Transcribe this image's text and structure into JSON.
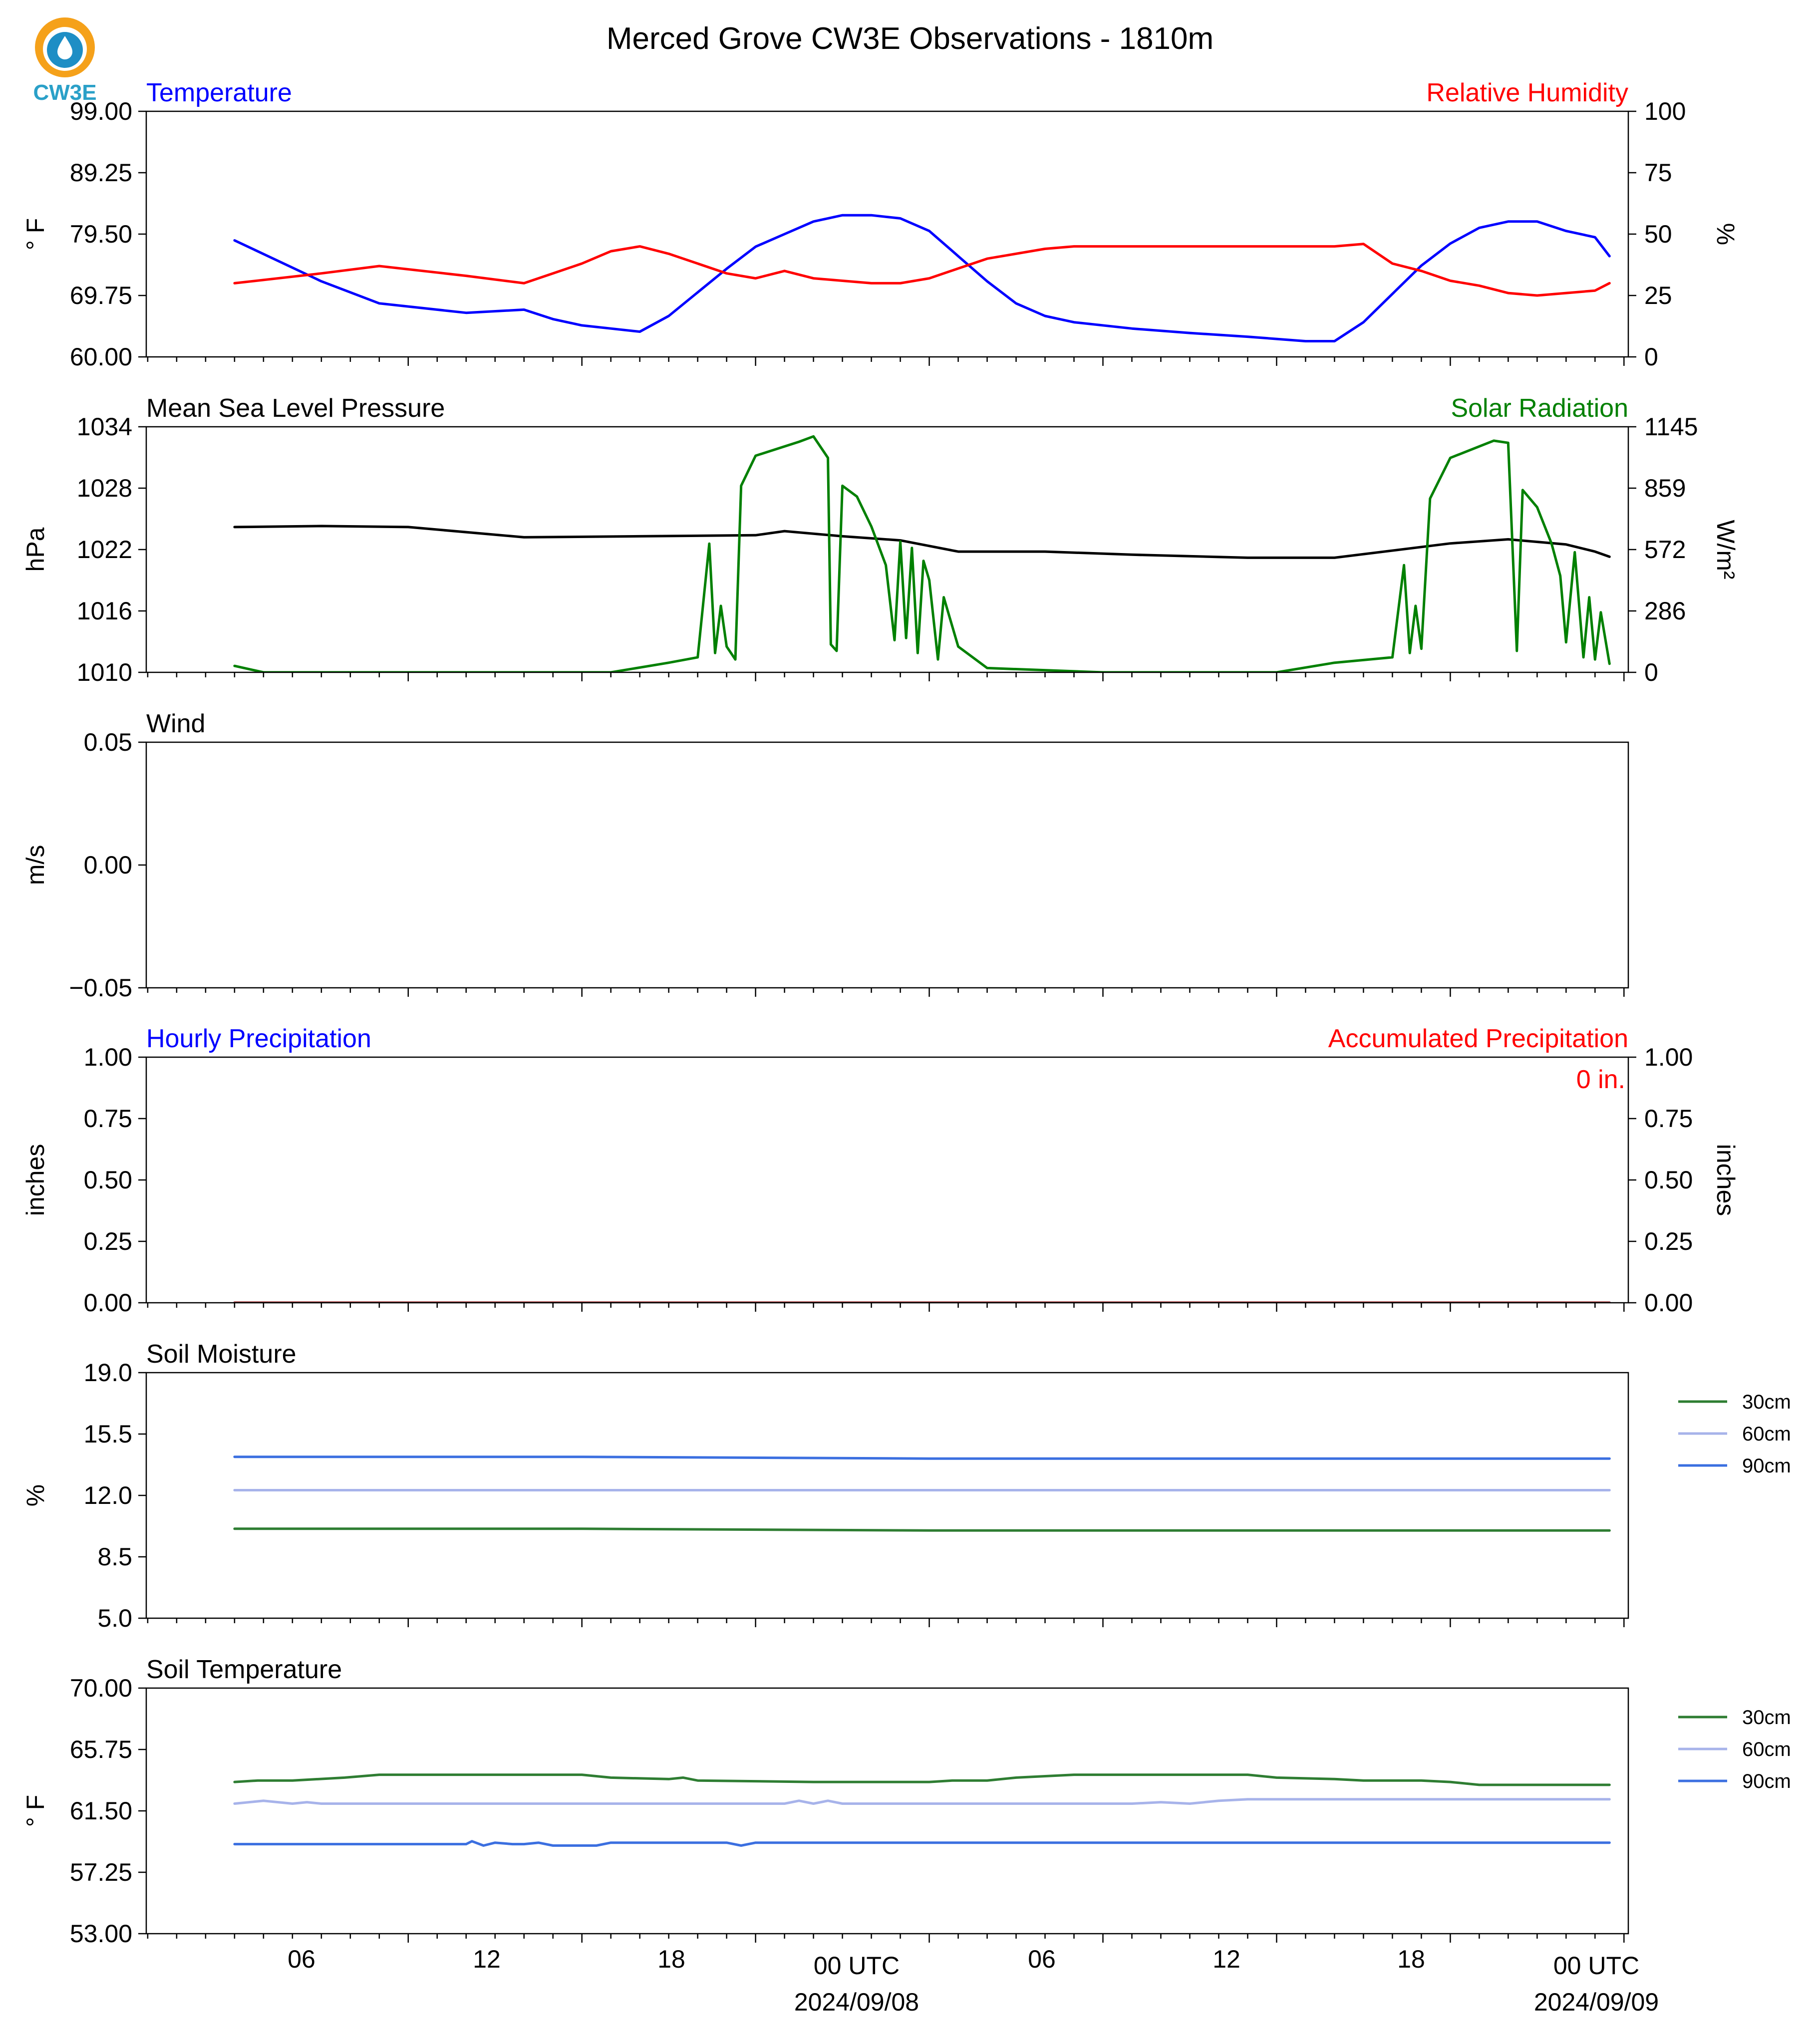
{
  "figure": {
    "title": "Merced Grove CW3E Observations - 1810m",
    "logo_text": "CW3E"
  },
  "x_axis": {
    "tick_labels": [
      "06",
      "12",
      "18",
      "00 UTC",
      "06",
      "12",
      "18",
      "00 UTC"
    ],
    "date_labels": [
      "2024/09/08",
      "2024/09/09"
    ]
  },
  "colors": {
    "temperature": "#0000ff",
    "humidity": "#ff0000",
    "pressure": "#000000",
    "solar": "#008000",
    "soil_30cm": "#2e7d32",
    "soil_60cm": "#a7b3ea",
    "soil_90cm": "#3b6fe0"
  },
  "chart_data": [
    {
      "type": "line",
      "title_left": "Temperature",
      "title_right": "Relative Humidity",
      "ylabel": "° F",
      "ylabel_right": "%",
      "ylim": [
        60,
        99
      ],
      "ylim_right": [
        0,
        100
      ],
      "yticks": [
        "99.00",
        "89.25",
        "79.50",
        "69.75",
        "60.00"
      ],
      "yticks_right": [
        "100",
        "75",
        "50",
        "25",
        "0"
      ],
      "x_hours": [
        0,
        3,
        5,
        8,
        10,
        11,
        12,
        13,
        14,
        15,
        17,
        18,
        19,
        20,
        21,
        22,
        23,
        24,
        25,
        26,
        27,
        28,
        29,
        31,
        33,
        35,
        37,
        38,
        39,
        40,
        41,
        42,
        43,
        44,
        45,
        46,
        47,
        47.5
      ],
      "series": [
        {
          "name": "Temperature",
          "axis": "left",
          "values": [
            78.5,
            72,
            68.5,
            67,
            67.5,
            66,
            65,
            64.5,
            64,
            66.5,
            74,
            77.5,
            79.5,
            81.5,
            82.5,
            82.5,
            82,
            80,
            76,
            72,
            68.5,
            66.5,
            65.5,
            64.5,
            63.8,
            63.2,
            62.5,
            62.5,
            65.5,
            70,
            74.5,
            78,
            80.5,
            81.5,
            81.5,
            80,
            79,
            76
          ]
        },
        {
          "name": "Relative Humidity",
          "axis": "right",
          "values": [
            30,
            34,
            37,
            33,
            30,
            34,
            38,
            43,
            45,
            42,
            34,
            32,
            35,
            32,
            31,
            30,
            30,
            32,
            36,
            40,
            42,
            44,
            45,
            45,
            45,
            45,
            45,
            45,
            46,
            38,
            35,
            31,
            29,
            26,
            25,
            26,
            27,
            30
          ]
        }
      ]
    },
    {
      "type": "line",
      "title_left": "Mean Sea Level Pressure",
      "title_right": "Solar Radiation",
      "ylabel": "hPa",
      "ylabel_right": "W/m²",
      "ylim": [
        1010,
        1034
      ],
      "ylim_right": [
        0,
        1145
      ],
      "yticks": [
        "1034",
        "1028",
        "1022",
        "1016",
        "1010"
      ],
      "yticks_right": [
        "1145",
        "859",
        "572",
        "286",
        "0"
      ],
      "series": [
        {
          "name": "Mean Sea Level Pressure",
          "axis": "left",
          "x_hours": [
            0,
            3,
            6,
            10,
            14,
            18,
            19,
            21,
            23,
            25,
            28,
            31,
            35,
            38,
            42,
            44,
            46,
            47,
            47.5
          ],
          "values": [
            1024.2,
            1024.3,
            1024.2,
            1023.2,
            1023.3,
            1023.4,
            1023.8,
            1023.3,
            1022.9,
            1021.8,
            1021.8,
            1021.5,
            1021.2,
            1021.2,
            1022.6,
            1023,
            1022.5,
            1021.8,
            1021.3
          ]
        },
        {
          "name": "Solar Radiation",
          "axis": "right",
          "x_hours": [
            0,
            1,
            5,
            10,
            13,
            15,
            16,
            16.4,
            16.6,
            16.8,
            17,
            17.3,
            17.5,
            18,
            19.5,
            20,
            20.5,
            20.6,
            20.8,
            21,
            21.5,
            22,
            22.5,
            22.8,
            23,
            23.2,
            23.4,
            23.6,
            23.8,
            24,
            24.3,
            24.5,
            25,
            26,
            30,
            36,
            38,
            40,
            40.4,
            40.6,
            40.8,
            41,
            41.3,
            42,
            43.5,
            44,
            44.3,
            44.5,
            45,
            45.5,
            45.8,
            46,
            46.3,
            46.6,
            46.8,
            47,
            47.2,
            47.5
          ],
          "values": [
            30,
            0,
            0,
            0,
            0,
            45,
            70,
            600,
            90,
            310,
            120,
            60,
            870,
            1010,
            1075,
            1100,
            1000,
            130,
            100,
            870,
            820,
            680,
            500,
            150,
            610,
            160,
            580,
            90,
            520,
            430,
            60,
            350,
            120,
            20,
            0,
            0,
            45,
            70,
            500,
            90,
            310,
            110,
            810,
            1000,
            1080,
            1070,
            100,
            850,
            770,
            600,
            450,
            140,
            560,
            70,
            350,
            60,
            280,
            40
          ]
        }
      ]
    },
    {
      "type": "line",
      "title_left": "Wind",
      "ylabel": "m/s",
      "ylim": [
        -0.055,
        0.055
      ],
      "yticks": [
        "0.05",
        "0.00",
        "−0.05"
      ],
      "series": []
    },
    {
      "type": "line",
      "title_left": "Hourly Precipitation",
      "title_right": "Accumulated Precipitation",
      "annotation": "0 in.",
      "ylabel": "inches",
      "ylabel_right": "inches",
      "ylim": [
        0,
        1
      ],
      "ylim_right": [
        0,
        1
      ],
      "yticks": [
        "1.00",
        "0.75",
        "0.50",
        "0.25",
        "0.00"
      ],
      "yticks_right": [
        "1.00",
        "0.75",
        "0.50",
        "0.25",
        "0.00"
      ],
      "x_hours": [
        0,
        47.5
      ],
      "series": [
        {
          "name": "Hourly Precipitation",
          "axis": "left",
          "values": [
            0,
            0
          ]
        },
        {
          "name": "Accumulated Precipitation",
          "axis": "right",
          "values": [
            0,
            0
          ]
        }
      ]
    },
    {
      "type": "line",
      "title_left": "Soil Moisture",
      "ylabel": "%",
      "ylim": [
        5,
        19
      ],
      "yticks": [
        "19.0",
        "15.5",
        "12.0",
        "8.5",
        "5.0"
      ],
      "legend": [
        "30cm",
        "60cm",
        "90cm"
      ],
      "x_hours": [
        0,
        12,
        24,
        36,
        47.5
      ],
      "series": [
        {
          "name": "30cm",
          "values": [
            10.1,
            10.1,
            10.0,
            10.0,
            10.0
          ]
        },
        {
          "name": "60cm",
          "values": [
            12.3,
            12.3,
            12.3,
            12.3,
            12.3
          ]
        },
        {
          "name": "90cm",
          "values": [
            14.2,
            14.2,
            14.1,
            14.1,
            14.1
          ]
        }
      ]
    },
    {
      "type": "line",
      "title_left": "Soil Temperature",
      "ylabel": "° F",
      "ylim": [
        53,
        70
      ],
      "yticks": [
        "70.00",
        "65.75",
        "61.50",
        "57.25",
        "53.00"
      ],
      "legend": [
        "30cm",
        "60cm",
        "90cm"
      ],
      "series": [
        {
          "name": "30cm",
          "x_hours": [
            0,
            0.8,
            2,
            3.8,
            5,
            7,
            12,
            13,
            15,
            15.5,
            16,
            20,
            24,
            24.8,
            26,
            27,
            29,
            31,
            35,
            36,
            38,
            39,
            41,
            42,
            43,
            47.5
          ],
          "values": [
            63.5,
            63.6,
            63.6,
            63.8,
            64.0,
            64.0,
            64.0,
            63.8,
            63.7,
            63.8,
            63.6,
            63.5,
            63.5,
            63.6,
            63.6,
            63.8,
            64.0,
            64.0,
            64.0,
            63.8,
            63.7,
            63.6,
            63.6,
            63.5,
            63.3,
            63.3
          ]
        },
        {
          "name": "60cm",
          "x_hours": [
            0,
            1,
            2,
            2.5,
            3,
            10,
            19,
            19.5,
            20,
            20.5,
            21,
            31,
            32,
            33,
            34,
            35,
            47.5
          ],
          "values": [
            62.0,
            62.2,
            62.0,
            62.1,
            62.0,
            62.0,
            62.0,
            62.2,
            62.0,
            62.2,
            62.0,
            62.0,
            62.1,
            62.0,
            62.2,
            62.3,
            62.3
          ]
        },
        {
          "name": "90cm",
          "x_hours": [
            0,
            8,
            8.2,
            8.6,
            9,
            9.6,
            10,
            10.5,
            11,
            12.5,
            13,
            14,
            17,
            17.5,
            18,
            47.5
          ],
          "values": [
            59.2,
            59.2,
            59.4,
            59.1,
            59.3,
            59.2,
            59.2,
            59.3,
            59.1,
            59.1,
            59.3,
            59.3,
            59.3,
            59.1,
            59.3,
            59.3
          ]
        }
      ]
    }
  ]
}
